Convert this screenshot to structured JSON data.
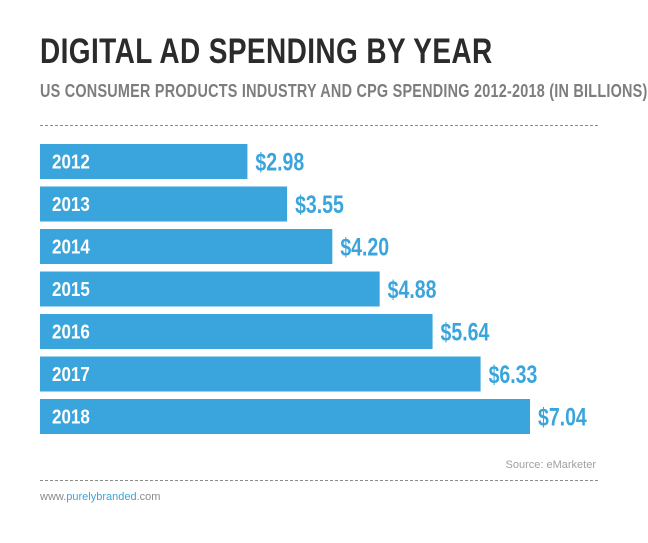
{
  "chart_data": {
    "type": "bar",
    "orientation": "horizontal",
    "title": "DIGITAL AD SPENDING BY YEAR",
    "subtitle": "US CONSUMER PRODUCTS INDUSTRY AND CPG SPENDING 2012-2018 (IN BILLIONS)",
    "categories": [
      "2012",
      "2013",
      "2014",
      "2015",
      "2016",
      "2017",
      "2018"
    ],
    "values": [
      2.98,
      3.55,
      4.2,
      4.88,
      5.64,
      6.33,
      7.04
    ],
    "value_labels": [
      "$2.98",
      "$3.55",
      "$4.20",
      "$4.88",
      "$5.64",
      "$6.33",
      "$7.04"
    ],
    "xlim": [
      0,
      7.04
    ],
    "grid": false,
    "colors": {
      "bar": "#3aa5dc",
      "bar_label": "#ffffff",
      "value_label": "#3aa5dc"
    }
  },
  "source": "Source: eMarketer",
  "footer": {
    "prefix": "www.",
    "brand": "purelybranded",
    "suffix": ".com"
  }
}
